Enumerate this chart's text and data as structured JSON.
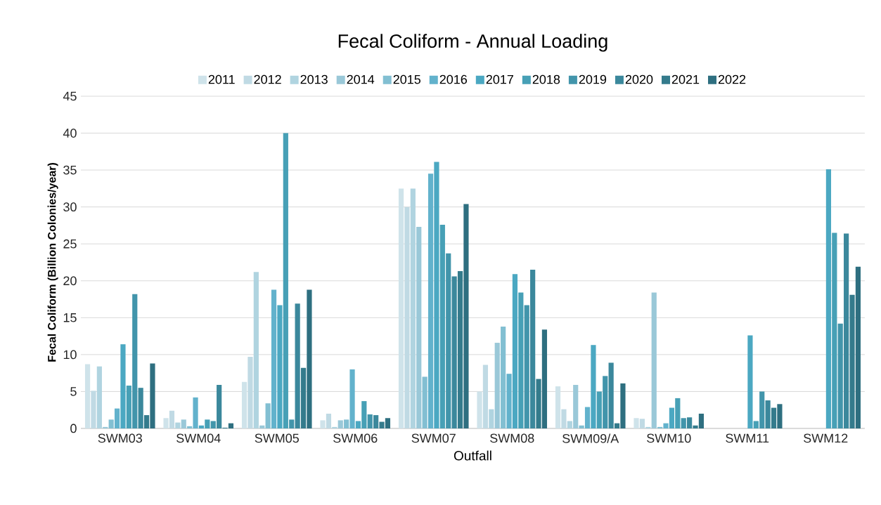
{
  "chart_data": {
    "type": "bar",
    "title": "Fecal Coliform - Annual Loading",
    "xlabel": "Outfall",
    "ylabel": "Fecal Coliform (Billion Colonies/year)",
    "categories": [
      "SWM03",
      "SWM04",
      "SWM05",
      "SWM06",
      "SWM07",
      "SWM08",
      "SWM09/A",
      "SWM10",
      "SWM11",
      "SWM12"
    ],
    "series": [
      {
        "name": "2011",
        "color": "#cfe3ea",
        "values": [
          8.7,
          1.4,
          6.3,
          1.1,
          32.5,
          5.0,
          5.7,
          1.4,
          null,
          null
        ]
      },
      {
        "name": "2012",
        "color": "#c0dae4",
        "values": [
          5.1,
          2.4,
          9.7,
          2.0,
          30.0,
          8.6,
          2.6,
          1.3,
          null,
          null
        ]
      },
      {
        "name": "2013",
        "color": "#b0d4e0",
        "values": [
          8.4,
          0.8,
          21.2,
          0.2,
          32.5,
          2.6,
          1.0,
          0.2,
          null,
          null
        ]
      },
      {
        "name": "2014",
        "color": "#9ac8d8",
        "values": [
          0.2,
          1.2,
          0.4,
          1.1,
          27.3,
          11.6,
          5.9,
          18.4,
          null,
          null
        ]
      },
      {
        "name": "2015",
        "color": "#82bfd2",
        "values": [
          1.2,
          0.3,
          3.4,
          1.2,
          7.0,
          13.8,
          0.4,
          0.2,
          null,
          null
        ]
      },
      {
        "name": "2016",
        "color": "#62b2cc",
        "values": [
          2.7,
          4.2,
          18.8,
          8.0,
          34.5,
          7.4,
          2.9,
          0.7,
          null,
          null
        ]
      },
      {
        "name": "2017",
        "color": "#4ba8c2",
        "values": [
          11.4,
          0.4,
          16.7,
          1.0,
          36.1,
          20.9,
          11.3,
          2.8,
          12.6,
          35.1
        ]
      },
      {
        "name": "2018",
        "color": "#47a0b6",
        "values": [
          5.8,
          1.2,
          40.0,
          3.7,
          27.6,
          18.4,
          5.0,
          4.1,
          1.0,
          26.5
        ]
      },
      {
        "name": "2019",
        "color": "#4295ab",
        "values": [
          18.2,
          1.0,
          1.2,
          1.9,
          23.7,
          16.7,
          7.1,
          1.4,
          5.0,
          14.2
        ]
      },
      {
        "name": "2020",
        "color": "#3b889c",
        "values": [
          5.5,
          5.9,
          16.9,
          1.8,
          20.6,
          21.5,
          8.9,
          1.5,
          3.8,
          26.4
        ]
      },
      {
        "name": "2021",
        "color": "#347b8c",
        "values": [
          1.8,
          0.1,
          8.2,
          0.9,
          21.3,
          6.7,
          0.7,
          0.4,
          2.8,
          18.1
        ]
      },
      {
        "name": "2022",
        "color": "#2e6f80",
        "values": [
          8.8,
          0.7,
          18.8,
          1.4,
          30.4,
          13.4,
          6.1,
          2.0,
          3.3,
          21.9
        ]
      }
    ],
    "ylim": [
      0,
      45
    ],
    "yticks": [
      0,
      5,
      10,
      15,
      20,
      25,
      30,
      35,
      40,
      45
    ],
    "grid": "y",
    "legend": "top"
  }
}
